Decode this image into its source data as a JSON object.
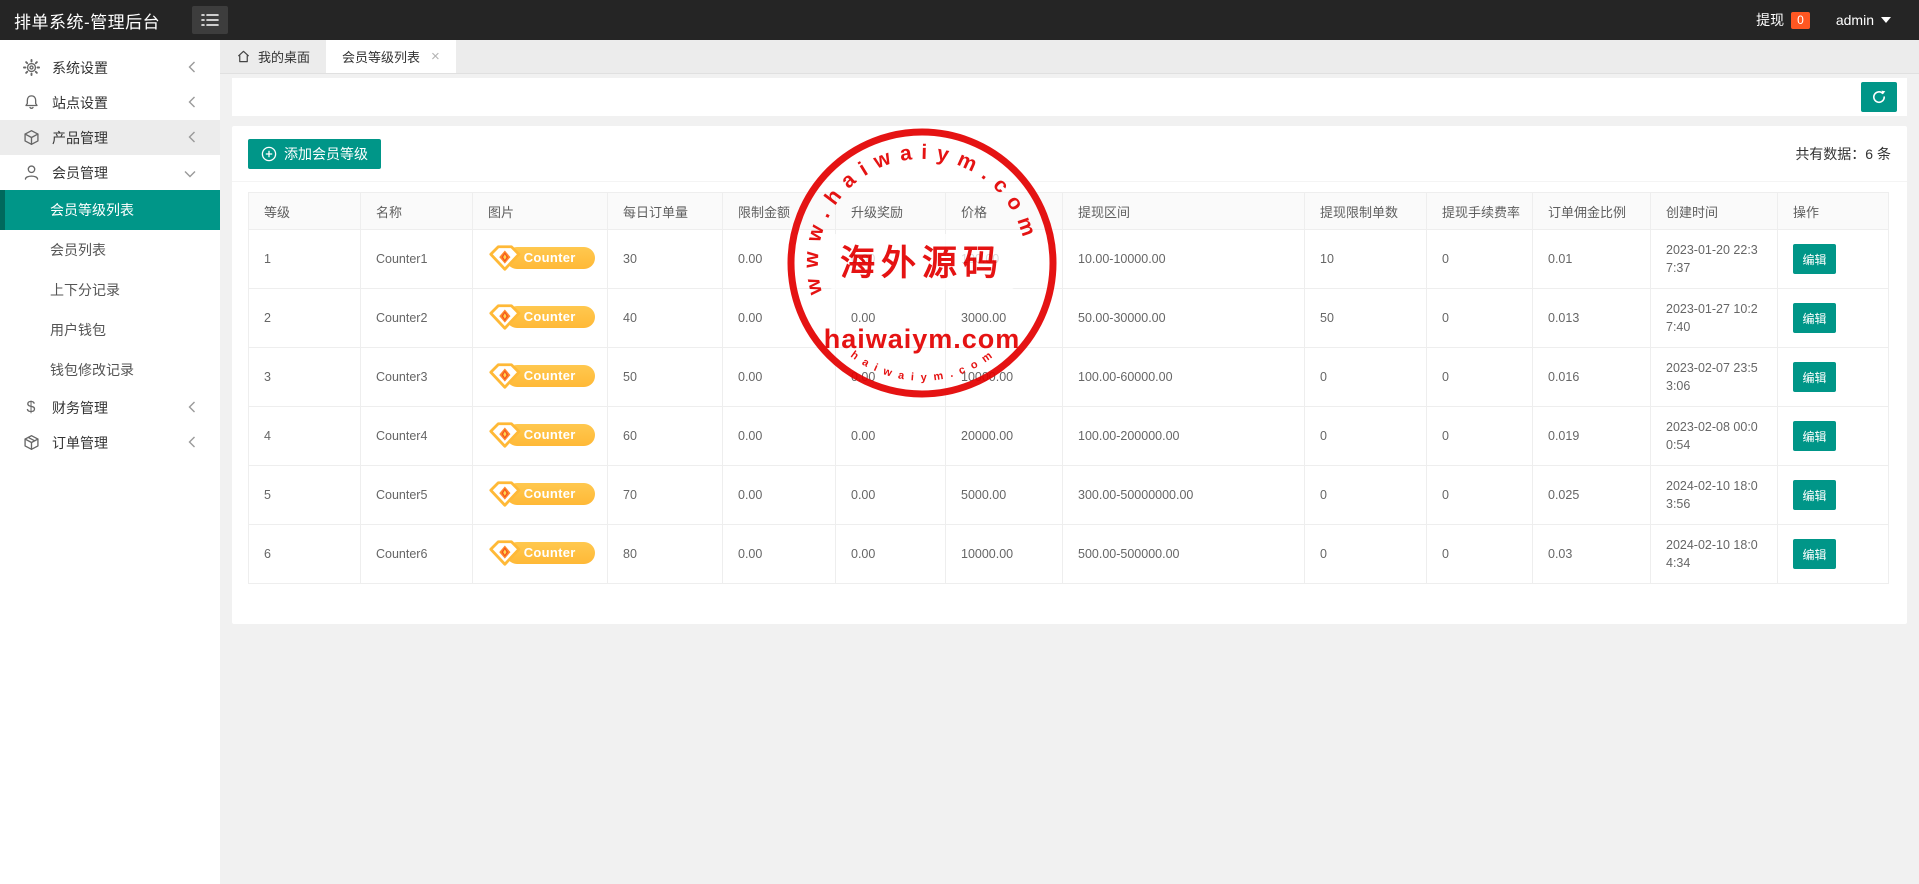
{
  "topbar": {
    "title": "排单系统-管理后台",
    "withdraw_label": "提现",
    "withdraw_count": "0",
    "username": "admin"
  },
  "tabs": [
    {
      "label": "我的桌面"
    },
    {
      "label": "会员等级列表"
    }
  ],
  "sidebar": {
    "groups": [
      {
        "label": "系统设置"
      },
      {
        "label": "站点设置"
      },
      {
        "label": "产品管理"
      },
      {
        "label": "会员管理",
        "children": [
          {
            "label": "会员等级列表"
          },
          {
            "label": "会员列表"
          },
          {
            "label": "上下分记录"
          },
          {
            "label": "用户钱包"
          },
          {
            "label": "钱包修改记录"
          }
        ]
      },
      {
        "label": "财务管理"
      },
      {
        "label": "订单管理"
      }
    ]
  },
  "content": {
    "add_button": "添加会员等级",
    "total_text": "共有数据：6 条"
  },
  "table": {
    "columns": [
      "等级",
      "名称",
      "图片",
      "每日订单量",
      "限制金额",
      "升级奖励",
      "价格",
      "提现区间",
      "提现限制单数",
      "提现手续费率",
      "订单佣金比例",
      "创建时间",
      "操作"
    ],
    "edit_label": "编辑",
    "rows": [
      {
        "level": "1",
        "name": "Counter1",
        "badge": "Counter 1",
        "daily": "30",
        "limit": "0.00",
        "reward": "0.00",
        "price": "100.00",
        "range": "10.00-10000.00",
        "withdraw_limit": "10",
        "fee": "0",
        "commission": "0.01",
        "created": "2023-01-20 22:37:37"
      },
      {
        "level": "2",
        "name": "Counter2",
        "badge": "Counter 2",
        "daily": "40",
        "limit": "0.00",
        "reward": "0.00",
        "price": "3000.00",
        "range": "50.00-30000.00",
        "withdraw_limit": "50",
        "fee": "0",
        "commission": "0.013",
        "created": "2023-01-27 10:27:40"
      },
      {
        "level": "3",
        "name": "Counter3",
        "badge": "Counter 3",
        "daily": "50",
        "limit": "0.00",
        "reward": "0.00",
        "price": "10000.00",
        "range": "100.00-60000.00",
        "withdraw_limit": "0",
        "fee": "0",
        "commission": "0.016",
        "created": "2023-02-07 23:53:06"
      },
      {
        "level": "4",
        "name": "Counter4",
        "badge": "Counter 4",
        "daily": "60",
        "limit": "0.00",
        "reward": "0.00",
        "price": "20000.00",
        "range": "100.00-200000.00",
        "withdraw_limit": "0",
        "fee": "0",
        "commission": "0.019",
        "created": "2023-02-08 00:00:54"
      },
      {
        "level": "5",
        "name": "Counter5",
        "badge": "Counter 5",
        "daily": "70",
        "limit": "0.00",
        "reward": "0.00",
        "price": "5000.00",
        "range": "300.00-50000000.00",
        "withdraw_limit": "0",
        "fee": "0",
        "commission": "0.025",
        "created": "2024-02-10 18:03:56"
      },
      {
        "level": "6",
        "name": "Counter6",
        "badge": "Counter 6",
        "daily": "80",
        "limit": "0.00",
        "reward": "0.00",
        "price": "10000.00",
        "range": "500.00-500000.00",
        "withdraw_limit": "0",
        "fee": "0",
        "commission": "0.03",
        "created": "2024-02-10 18:04:34"
      }
    ]
  },
  "watermark": {
    "arc_text": "w w w . h a i w a i y m . c o m",
    "center_cn": "海外源码",
    "center_en": "haiwaiym.com",
    "bottom_arc": "h a i w a i y m . c o m"
  },
  "colors": {
    "accent": "#009688",
    "topbar": "#252525",
    "badge_orange": "#ff5722",
    "pill_yellow": "#ffbf42",
    "stamp_red": "#e30000"
  }
}
